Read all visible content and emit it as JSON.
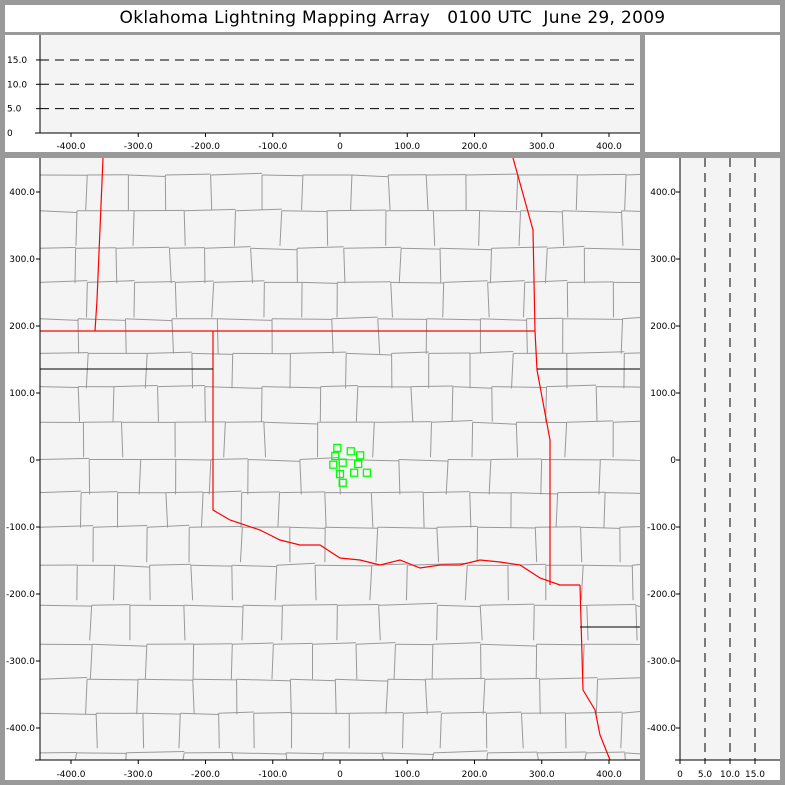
{
  "title": "Oklahoma Lightning Mapping Array   0100 UTC  June 29, 2009",
  "colors": {
    "background_panel": "#f4f4f4",
    "frame": "#999999",
    "state_border": "#ff0000",
    "county_border": "#999999",
    "station": "#00ff00"
  },
  "chart_data": [
    {
      "type": "line",
      "panel": "altitude-vs-east-west",
      "xlim": [
        -450,
        450
      ],
      "ylim": [
        0,
        20
      ],
      "x_ticks": [
        "-400.0",
        "-300.0",
        "-200.0",
        "-100.0",
        "0",
        "100.0",
        "200.0",
        "300.0",
        "400.0"
      ],
      "x_tick_values": [
        -400,
        -300,
        -200,
        -100,
        0,
        100,
        200,
        300,
        400
      ],
      "y_ticks": [
        "0",
        "5.0",
        "10.0",
        "15.0"
      ],
      "y_tick_values": [
        0,
        5,
        10,
        15
      ],
      "reference_lines": [
        5,
        10,
        15
      ],
      "reference_line_style": "dashed"
    },
    {
      "type": "scatter",
      "panel": "plan-view-map",
      "xlim": [
        -450,
        450
      ],
      "ylim": [
        -450,
        450
      ],
      "x_ticks": [
        "-400.0",
        "-300.0",
        "-200.0",
        "-100.0",
        "0",
        "100.0",
        "200.0",
        "300.0",
        "400.0"
      ],
      "x_tick_values": [
        -400,
        -300,
        -200,
        -100,
        0,
        100,
        200,
        300,
        400
      ],
      "y_ticks": [
        "400.0",
        "300.0",
        "200.0",
        "100.0",
        "0",
        "-100.0",
        "-200.0",
        "-300.0",
        "-400.0"
      ],
      "y_tick_values": [
        400,
        300,
        200,
        100,
        0,
        -100,
        -200,
        -300,
        -400
      ],
      "stations": {
        "marker": "open-square",
        "x": [
          -4,
          16,
          30,
          -7,
          4,
          -10,
          27,
          0,
          21,
          40,
          4
        ],
        "y": [
          18,
          13,
          7,
          6,
          -4,
          -7,
          -6,
          -21,
          -19,
          -19,
          -34
        ]
      },
      "background": "county and state boundaries"
    },
    {
      "type": "line",
      "panel": "north-south-vs-altitude",
      "xlim": [
        0,
        20
      ],
      "ylim": [
        -450,
        450
      ],
      "x_ticks": [
        "0",
        "5.0",
        "10.0",
        "15.0"
      ],
      "x_tick_values": [
        0,
        5,
        10,
        15
      ],
      "y_ticks": [
        "400.0",
        "300.0",
        "200.0",
        "100.0",
        "0",
        "-100.0",
        "-200.0",
        "-300.0",
        "-400.0"
      ],
      "y_tick_values": [
        400,
        300,
        200,
        100,
        0,
        -100,
        -200,
        -300,
        -400
      ],
      "reference_lines": [
        5,
        10,
        15
      ],
      "reference_line_style": "dashed"
    }
  ]
}
